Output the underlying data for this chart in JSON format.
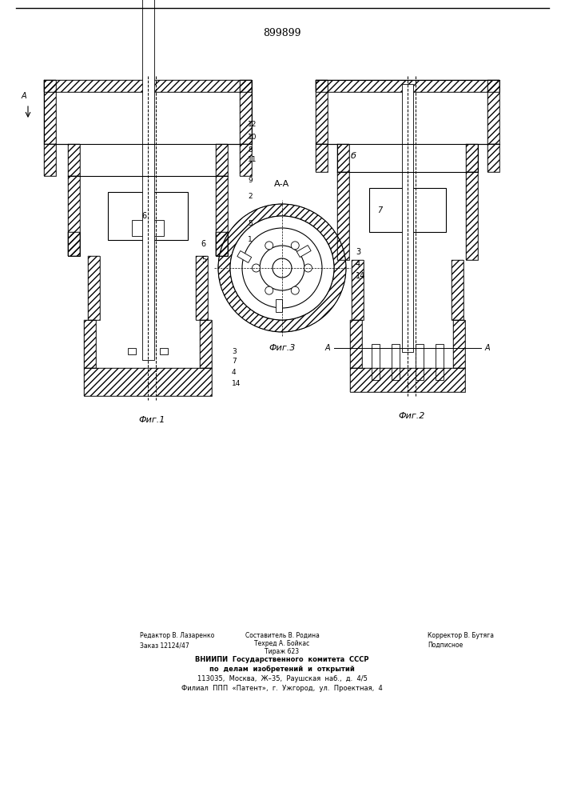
{
  "patent_number": "899899",
  "fig1_label": "Фиг.1",
  "fig2_label": "Фиг.2",
  "fig3_label": "Фиг.3",
  "section_label": "А-А",
  "bg_color": "#ffffff",
  "line_color": "#000000",
  "hatch_color": "#000000",
  "footer_lines": [
    "Редактор В. Лазаренко        Составитель В. Родина        Корректор В. Бутяга",
    "Заказ 12124/47                    Техред А. Бойкас                   Подписное",
    "                                        Тираж 623",
    "              ВНИИПИ  Государственного  комитета  СССР",
    "                   по  делам  изобретений  и  открытий",
    "          113035,  Москва,  Ж–35,  Раушская  наб.,  д.  4/5",
    "       Филиал  ППП  «Патент»,  г.  Ужгород,  ул.  Проектная,  4"
  ]
}
